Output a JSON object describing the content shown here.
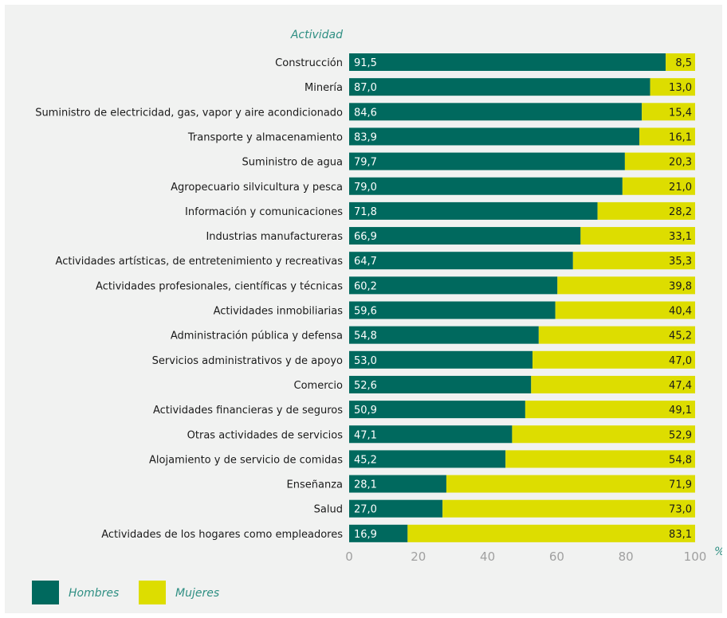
{
  "chart_data": {
    "type": "bar",
    "orientation": "horizontal",
    "stacked": true,
    "ylabel": "Actividad",
    "xunit": "%",
    "xlim": [
      0,
      100
    ],
    "xticks": [
      "0",
      "20",
      "40",
      "60",
      "80",
      "100"
    ],
    "grid": false,
    "legend_position": "bottom-left",
    "categories": [
      "Construcción",
      "Minería",
      "Suministro de electricidad, gas, vapor y aire acondicionado",
      "Transporte y almacenamiento",
      "Suministro de agua",
      "Agropecuario silvicultura y pesca",
      "Información y comunicaciones",
      "Industrias manufactureras",
      "Actividades artísticas, de entretenimiento y recreativas",
      "Actividades profesionales, científicas y técnicas",
      "Actividades inmobiliarias",
      "Administración pública y defensa",
      "Servicios administrativos y de apoyo",
      "Comercio",
      "Actividades financieras y de seguros",
      "Otras actividades de servicios",
      "Alojamiento y de servicio de comidas",
      "Enseñanza",
      "Salud",
      "Actividades de los hogares como empleadores"
    ],
    "series": [
      {
        "name": "Hombres",
        "color": "#00695e",
        "values": [
          91.5,
          87.0,
          84.6,
          83.9,
          79.7,
          79.0,
          71.8,
          66.9,
          64.7,
          60.2,
          59.6,
          54.8,
          53.0,
          52.6,
          50.9,
          47.1,
          45.2,
          28.1,
          27.0,
          16.9
        ],
        "labels": [
          "91,5",
          "87,0",
          "84,6",
          "83,9",
          "79,7",
          "79,0",
          "71,8",
          "66,9",
          "64,7",
          "60,2",
          "59,6",
          "54,8",
          "53,0",
          "52,6",
          "50,9",
          "47,1",
          "45,2",
          "28,1",
          "27,0",
          "16,9"
        ]
      },
      {
        "name": "Mujeres",
        "color": "#dddd00",
        "values": [
          8.5,
          13.0,
          15.4,
          16.1,
          20.3,
          21.0,
          28.2,
          33.1,
          35.3,
          39.8,
          40.4,
          45.2,
          47.0,
          47.4,
          49.1,
          52.9,
          54.8,
          71.9,
          73.0,
          83.1
        ],
        "labels": [
          "8,5",
          "13,0",
          "15,4",
          "16,1",
          "20,3",
          "21,0",
          "28,2",
          "33,1",
          "35,3",
          "39,8",
          "40,4",
          "45,2",
          "47,0",
          "47,4",
          "49,1",
          "52,9",
          "54,8",
          "71,9",
          "73,0",
          "83,1"
        ]
      }
    ]
  }
}
